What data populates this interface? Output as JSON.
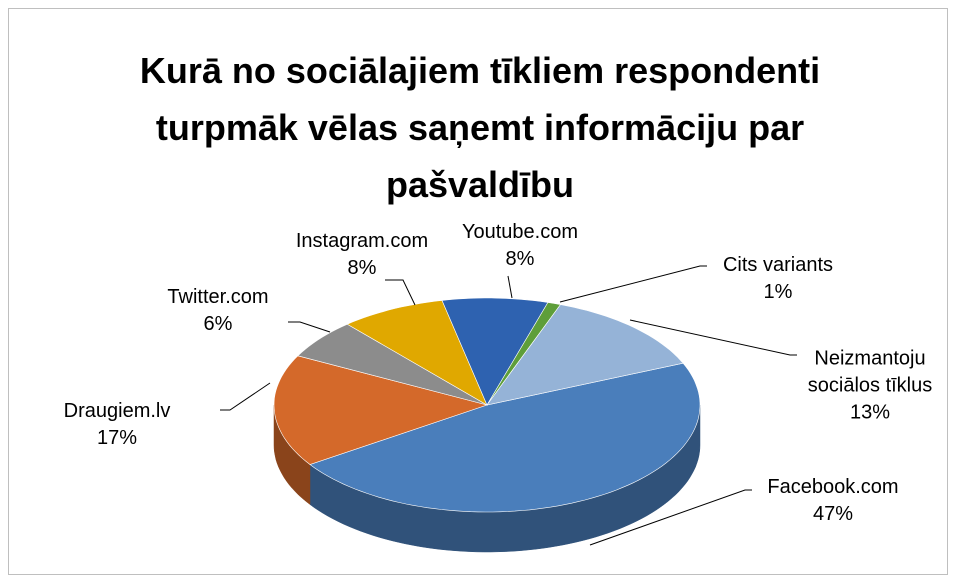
{
  "chart_data": {
    "type": "pie3d",
    "title": "Kurā no sociālajiem tīkliem respondenti turpmāk vēlas saņemt informāciju par pašvaldību",
    "categories": [
      "Facebook.com",
      "Draugiem.lv",
      "Twitter.com",
      "Instagram.com",
      "Youtube.com",
      "Cits variants",
      "Neizmantoju sociālos tīklus"
    ],
    "values": [
      47,
      17,
      6,
      8,
      8,
      1,
      13
    ],
    "value_labels": [
      "47%",
      "17%",
      "6%",
      "8%",
      "8%",
      "1%",
      "13%"
    ],
    "colors": [
      "#4a7ebb",
      "#d4692a",
      "#8c8c8c",
      "#e0a800",
      "#2e62b0",
      "#5e9e3a",
      "#95b3d7"
    ]
  }
}
